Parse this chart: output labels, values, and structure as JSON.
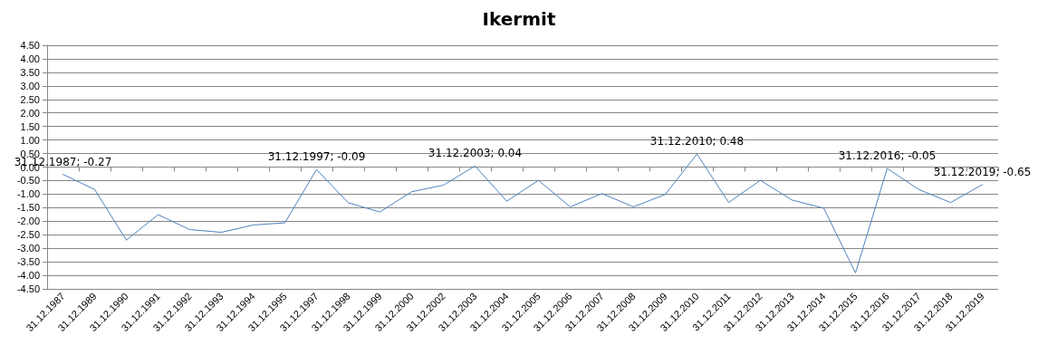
{
  "chart_data": {
    "type": "line",
    "title": "Ikermit",
    "categories": [
      "31.12.1987",
      "31.12.1989",
      "31.12.1990",
      "31.12.1991",
      "31.12.1992",
      "31.12.1993",
      "31.12.1994",
      "31.12.1995",
      "31.12.1997",
      "31.12.1998",
      "31.12.1999",
      "31.12.2000",
      "31.12.2002",
      "31.12.2003",
      "31.12.2004",
      "31.12.2005",
      "31.12.2006",
      "31.12.2007",
      "31.12.2008",
      "31.12.2009",
      "31.12.2010",
      "31.12.2011",
      "31.12.2012",
      "31.12.2013",
      "31.12.2014",
      "31.12.2015",
      "31.12.2016",
      "31.12.2017",
      "31.12.2018",
      "31.12.2019"
    ],
    "series": [
      {
        "color": "#4f81bd",
        "values": [
          -0.27,
          -0.83,
          -2.7,
          -1.76,
          -2.31,
          -2.41,
          -2.14,
          -2.06,
          -0.09,
          -1.32,
          -1.66,
          -0.91,
          -0.67,
          0.04,
          -1.26,
          -0.49,
          -1.47,
          -0.98,
          -1.47,
          -1.01,
          0.48,
          -1.31,
          -0.49,
          -1.22,
          -1.52,
          -3.91,
          -0.05,
          -0.83,
          -1.31,
          -0.65
        ],
        "value_labels": [
          "31.12.1987; -0.27",
          null,
          null,
          null,
          null,
          null,
          null,
          null,
          "31.12.1997; -0.09",
          null,
          null,
          null,
          null,
          "31.12.2003; 0.04",
          null,
          null,
          null,
          null,
          null,
          null,
          "31.12.2010; 0.48",
          null,
          null,
          null,
          null,
          null,
          "31.12.2016; -0.05",
          null,
          null,
          "31.12.2019; -0.65"
        ]
      }
    ],
    "ylim": [
      -4.5,
      4.5
    ],
    "yticks": [
      {
        "value": -4.5,
        "label": "-4.50"
      },
      {
        "value": -4,
        "label": "-4.00"
      },
      {
        "value": -3.5,
        "label": "-3.50"
      },
      {
        "value": -3,
        "label": "-3.00"
      },
      {
        "value": -2.5,
        "label": "-2.50"
      },
      {
        "value": -2,
        "label": "-2.00"
      },
      {
        "value": -1.5,
        "label": "-1.50"
      },
      {
        "value": -1,
        "label": "-1.00"
      },
      {
        "value": -0.5,
        "label": "-0.50"
      },
      {
        "value": 0,
        "label": "0.00"
      },
      {
        "value": 0.5,
        "label": "0.50"
      },
      {
        "value": 1,
        "label": "1.00"
      },
      {
        "value": 1.5,
        "label": "1.50"
      },
      {
        "value": 2,
        "label": "2.00"
      },
      {
        "value": 2.5,
        "label": "2.50"
      },
      {
        "value": 3,
        "label": "3.00"
      },
      {
        "value": 3.5,
        "label": "3.50"
      },
      {
        "value": 4,
        "label": "4.00"
      },
      {
        "value": 4.5,
        "label": "4.50"
      }
    ],
    "grid": "y",
    "marker": "none",
    "line_style": "solid"
  }
}
